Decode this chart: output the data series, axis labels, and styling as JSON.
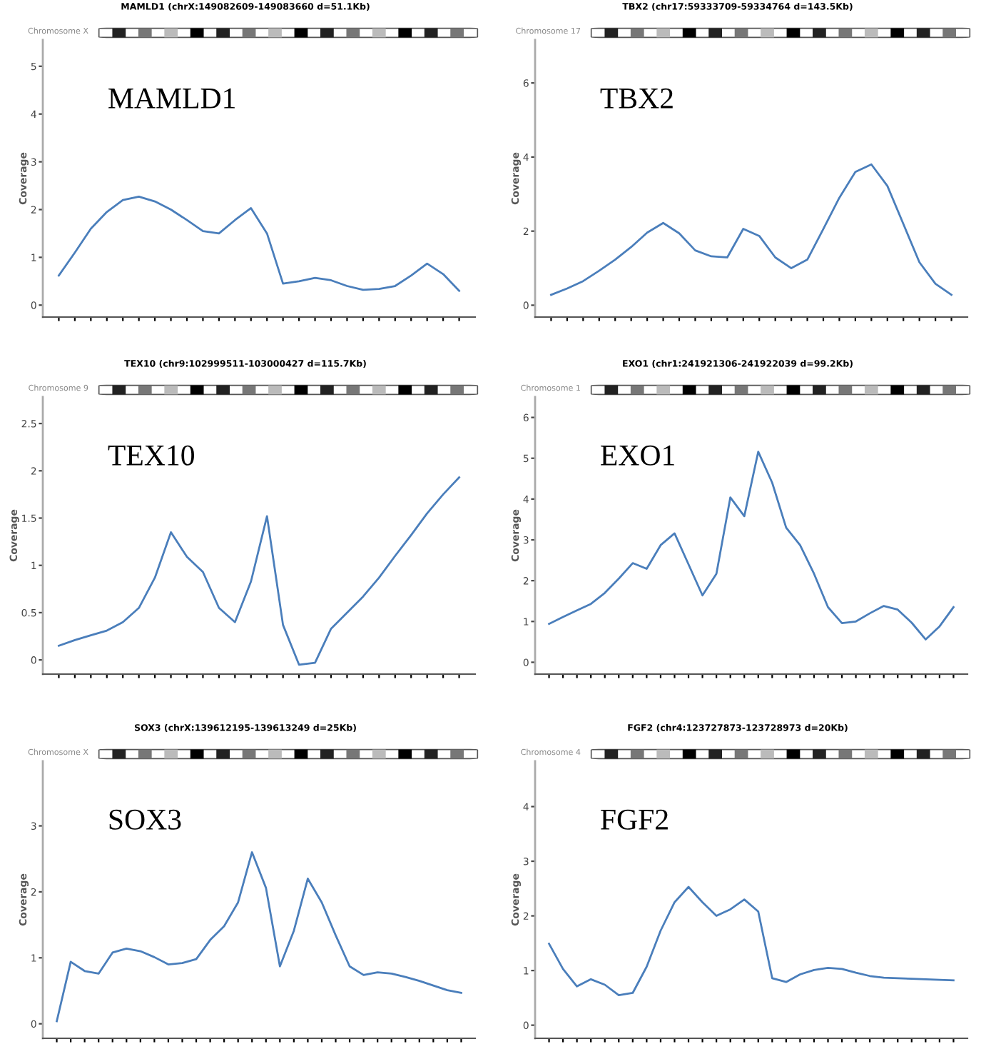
{
  "chart_data": [
    {
      "type": "line",
      "title": "MAMLD1 (chrX:149082609-149083660 d=51.1Kb)",
      "ylabel": "Coverage",
      "annotations": [
        "Chromosome X",
        "MAMLD1"
      ],
      "tick_labels": "y",
      "grid": false,
      "color": "#4a7ebb",
      "categories": [
        null,
        null,
        null,
        null,
        null,
        null,
        null,
        null,
        null,
        null,
        null,
        null,
        null,
        null,
        null,
        null,
        null,
        null,
        null,
        null,
        null,
        null,
        null,
        null,
        null,
        null
      ],
      "values": [
        0.62,
        1.1,
        1.6,
        1.95,
        2.2,
        2.27,
        2.17,
        2.0,
        1.78,
        1.55,
        1.5,
        1.78,
        2.03,
        1.5,
        0.45,
        0.5,
        0.57,
        0.52,
        0.4,
        0.32,
        0.34,
        0.4,
        0.62,
        0.87,
        0.65,
        0.3
      ],
      "ylim": [
        -0.25,
        5.55
      ],
      "yticks": [
        0,
        1,
        2,
        3,
        4,
        5
      ]
    },
    {
      "type": "line",
      "title": "TBX2 (chr17:59333709-59334764 d=143.5Kb)",
      "ylabel": "Coverage",
      "annotations": [
        "Chromosome 17",
        "TBX2"
      ],
      "tick_labels": "y",
      "grid": false,
      "color": "#4a7ebb",
      "categories": [
        null,
        null,
        null,
        null,
        null,
        null,
        null,
        null,
        null,
        null,
        null,
        null,
        null,
        null,
        null,
        null,
        null,
        null,
        null,
        null,
        null,
        null,
        null,
        null,
        null,
        null
      ],
      "values": [
        0.28,
        0.45,
        0.65,
        0.93,
        1.23,
        1.57,
        1.96,
        2.22,
        1.94,
        1.48,
        1.32,
        1.29,
        2.06,
        1.87,
        1.29,
        1.0,
        1.23,
        2.06,
        2.9,
        3.6,
        3.8,
        3.22,
        2.19,
        1.16,
        0.58,
        0.28
      ],
      "ylim": [
        -0.32,
        7.16
      ],
      "yticks": [
        0,
        2,
        4,
        6
      ]
    },
    {
      "type": "line",
      "title": "TEX10 (chr9:102999511-103000427 d=115.7Kb)",
      "ylabel": "Coverage",
      "annotations": [
        "Chromosome 9",
        "TEX10"
      ],
      "tick_labels": "y",
      "grid": false,
      "color": "#4a7ebb",
      "categories": [
        null,
        null,
        null,
        null,
        null,
        null,
        null,
        null,
        null,
        null,
        null,
        null,
        null,
        null,
        null,
        null,
        null,
        null,
        null,
        null,
        null,
        null,
        null,
        null,
        null,
        null
      ],
      "values": [
        0.15,
        0.21,
        0.26,
        0.31,
        0.4,
        0.55,
        0.87,
        1.35,
        1.09,
        0.93,
        0.55,
        0.4,
        0.83,
        1.52,
        0.37,
        -0.05,
        -0.03,
        0.33,
        0.5,
        0.67,
        0.87,
        1.1,
        1.32,
        1.55,
        1.75,
        1.93
      ],
      "ylim": [
        -0.15,
        2.78
      ],
      "yticks": [
        0,
        0.5,
        1,
        1.5,
        2,
        2.5
      ]
    },
    {
      "type": "line",
      "title": "EXO1 (chr1:241921306-241922039 d=99.2Kb)",
      "ylabel": "Coverage",
      "annotations": [
        "Chromosome 1",
        "EXO1"
      ],
      "tick_labels": "y",
      "grid": false,
      "color": "#4a7ebb",
      "categories": [
        null,
        null,
        null,
        null,
        null,
        null,
        null,
        null,
        null,
        null,
        null,
        null,
        null,
        null,
        null,
        null,
        null,
        null,
        null,
        null,
        null,
        null,
        null,
        null,
        null,
        null,
        null,
        null,
        null,
        null
      ],
      "values": [
        0.94,
        1.11,
        1.27,
        1.43,
        1.7,
        2.05,
        2.43,
        2.29,
        2.87,
        3.16,
        2.4,
        1.64,
        2.17,
        4.04,
        3.58,
        5.16,
        4.4,
        3.3,
        2.87,
        2.17,
        1.35,
        0.96,
        1.0,
        1.2,
        1.38,
        1.29,
        0.97,
        0.56,
        0.88,
        1.35
      ],
      "ylim": [
        -0.29,
        6.5
      ],
      "yticks": [
        0,
        1,
        2,
        3,
        4,
        5,
        6
      ]
    },
    {
      "type": "line",
      "title": "SOX3 (chrX:139612195-139613249 d=25Kb)",
      "ylabel": "Coverage",
      "annotations": [
        "Chromosome X",
        "SOX3"
      ],
      "tick_labels": "y",
      "grid": false,
      "color": "#4a7ebb",
      "categories": [
        null,
        null,
        null,
        null,
        null,
        null,
        null,
        null,
        null,
        null,
        null,
        null,
        null,
        null,
        null,
        null,
        null,
        null,
        null,
        null,
        null,
        null,
        null,
        null,
        null,
        null,
        null,
        null,
        null,
        null
      ],
      "values": [
        0.04,
        0.94,
        0.8,
        0.76,
        1.08,
        1.14,
        1.1,
        1.01,
        0.9,
        0.92,
        0.98,
        1.27,
        1.48,
        1.84,
        2.6,
        2.06,
        0.87,
        1.41,
        2.2,
        1.84,
        1.34,
        0.87,
        0.74,
        0.78,
        0.76,
        0.71,
        0.65,
        0.58,
        0.51,
        0.47
      ],
      "ylim": [
        -0.22,
        3.98
      ],
      "yticks": [
        0,
        1,
        2,
        3
      ]
    },
    {
      "type": "line",
      "title": "FGF2 (chr4:123727873-123728973 d=20Kb)",
      "ylabel": "Coverage",
      "annotations": [
        "Chromosome 4",
        "FGF2"
      ],
      "tick_labels": "y",
      "grid": false,
      "color": "#4a7ebb",
      "categories": [
        null,
        null,
        null,
        null,
        null,
        null,
        null,
        null,
        null,
        null,
        null,
        null,
        null,
        null,
        null,
        null,
        null,
        null,
        null,
        null,
        null,
        null,
        null,
        null,
        null,
        null,
        null,
        null,
        null,
        null
      ],
      "values": [
        1.49,
        1.03,
        0.71,
        0.84,
        0.74,
        0.55,
        0.59,
        1.07,
        1.73,
        2.25,
        2.53,
        2.25,
        2.0,
        2.12,
        2.3,
        2.08,
        0.86,
        0.79,
        0.93,
        1.01,
        1.05,
        1.03,
        0.96,
        0.9,
        0.87,
        0.86,
        0.85,
        0.84,
        0.83,
        0.82
      ],
      "ylim": [
        -0.24,
        4.83
      ],
      "yticks": [
        0,
        1,
        2,
        3,
        4
      ]
    }
  ]
}
